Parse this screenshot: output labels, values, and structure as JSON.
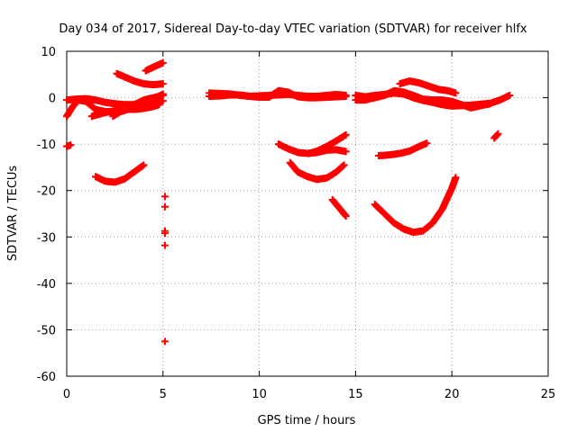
{
  "chart_data": {
    "type": "scatter",
    "title": "Day 034 of 2017, Sidereal Day-to-day VTEC variation (SDTVAR) for receiver hlfx",
    "xlabel": "GPS time / hours",
    "ylabel": "SDTVAR / TECUs",
    "xlim": [
      0,
      25
    ],
    "ylim": [
      -60,
      10
    ],
    "xticks": [
      0,
      5,
      10,
      15,
      20,
      25
    ],
    "yticks": [
      -60,
      -50,
      -40,
      -30,
      -20,
      -10,
      0,
      10
    ],
    "grid": true,
    "marker": "plus",
    "color": "#ff0000",
    "series": [
      {
        "x": [
          0.0,
          0.5,
          1.0,
          1.5,
          2.0,
          2.5,
          3.0,
          3.5,
          4.0,
          4.5,
          5.0
        ],
        "y": [
          -0.5,
          -0.3,
          -0.2,
          -0.5,
          -1.0,
          -1.3,
          -1.5,
          -1.5,
          -1.3,
          -1.0,
          -0.7
        ]
      },
      {
        "x": [
          0.0,
          0.3,
          0.6,
          1.0,
          1.5,
          2.0,
          2.5,
          3.0,
          3.5,
          4.0,
          4.5,
          5.0
        ],
        "y": [
          -4,
          -2,
          -0.5,
          -0.8,
          -2.5,
          -3.0,
          -3.0,
          -2.5,
          -1.5,
          -0.5,
          0.0,
          0.5
        ]
      },
      {
        "x": [
          1.3,
          2.0,
          2.5,
          3.0,
          3.5,
          4.0,
          4.5,
          5.0
        ],
        "y": [
          -4,
          -3.2,
          -2.8,
          -2.5,
          -2.0,
          -1.2,
          -0.3,
          0.8
        ]
      },
      {
        "x": [
          2.4,
          2.8,
          3.2,
          3.6,
          4.0,
          4.4,
          4.8
        ],
        "y": [
          -4,
          -3,
          -2.5,
          -2.5,
          -2.3,
          -2.0,
          -1.5
        ]
      },
      {
        "x": [
          2.6,
          3.0,
          3.5,
          4.0,
          4.5,
          5.0
        ],
        "y": [
          5.2,
          4.5,
          3.6,
          3.0,
          2.8,
          3.0
        ]
      },
      {
        "x": [
          4.1,
          4.4,
          4.7,
          5.0
        ],
        "y": [
          5.8,
          6.4,
          7.0,
          7.5
        ]
      },
      {
        "x": [
          0.0,
          0.2
        ],
        "y": [
          -10.5,
          -10.2
        ]
      },
      {
        "x": [
          1.5,
          2.0,
          2.5,
          3.0,
          3.5,
          4.0
        ],
        "y": [
          -17,
          -18.0,
          -18.2,
          -17.5,
          -16.0,
          -14.5
        ]
      },
      {
        "x": [
          5.1,
          5.1,
          5.1,
          5.1,
          5.1,
          5.1
        ],
        "y": [
          -21.3,
          -23.5,
          -28.7,
          -29.2,
          -31.8,
          -52.5
        ]
      },
      {
        "x": [
          7.4,
          8.0,
          8.5,
          9.0,
          9.5,
          10.0,
          10.5,
          11.0,
          11.5,
          12.0,
          12.5,
          13.0,
          13.5,
          14.0,
          14.5
        ],
        "y": [
          1.0,
          0.9,
          0.8,
          0.5,
          0.3,
          0.4,
          0.5,
          0.6,
          0.7,
          0.5,
          0.3,
          0.3,
          0.5,
          0.7,
          0.5
        ]
      },
      {
        "x": [
          7.4,
          8.0,
          8.5,
          9.0,
          9.5,
          10.0,
          10.5,
          11.0,
          11.5,
          12.0,
          12.5,
          13.0,
          13.5,
          14.0,
          14.5
        ],
        "y": [
          0.3,
          0.4,
          0.6,
          0.6,
          0.3,
          0.1,
          0.1,
          1.5,
          1.2,
          0.2,
          0.0,
          0.0,
          0.1,
          0.2,
          0.3
        ]
      },
      {
        "x": [
          11.0,
          11.5,
          12.0,
          12.5,
          13.0,
          13.5,
          14.0,
          14.5
        ],
        "y": [
          -10,
          -11.0,
          -11.8,
          -12.0,
          -11.8,
          -11.3,
          -11.2,
          -11.6
        ]
      },
      {
        "x": [
          12.6,
          13.0,
          13.5,
          14.0,
          14.5
        ],
        "y": [
          -12,
          -11.5,
          -10.5,
          -9.3,
          -8.0
        ]
      },
      {
        "x": [
          11.6,
          12.0,
          12.5,
          13.0,
          13.5,
          14.0,
          14.4
        ],
        "y": [
          -14,
          -16.0,
          -17.0,
          -17.6,
          -17.3,
          -16.0,
          -14.5
        ]
      },
      {
        "x": [
          13.8,
          14.2,
          14.5
        ],
        "y": [
          -22,
          -24.0,
          -25.5
        ]
      },
      {
        "x": [
          15.0,
          15.5,
          16.0,
          16.5,
          17.0,
          17.5,
          18.0,
          18.5,
          19.0,
          19.5,
          20.0,
          20.5,
          21.0,
          21.5,
          22.0,
          22.5,
          23.0
        ],
        "y": [
          0.5,
          0.2,
          0.5,
          0.7,
          1.0,
          0.8,
          0.0,
          -0.6,
          -1.0,
          -1.5,
          -1.8,
          -1.7,
          -1.6,
          -1.4,
          -1.2,
          -0.5,
          0.5
        ]
      },
      {
        "x": [
          15.0,
          15.5,
          16.0,
          16.5,
          17.0,
          17.5,
          18.0,
          18.5,
          19.0,
          19.5,
          20.0,
          20.5,
          21.0,
          21.5,
          22.0
        ],
        "y": [
          -0.5,
          -0.5,
          0.0,
          0.5,
          1.5,
          1.2,
          0.5,
          -0.3,
          -0.5,
          -0.5,
          -0.8,
          -1.5,
          -2.2,
          -1.7,
          -1.3
        ]
      },
      {
        "x": [
          17.3,
          17.8,
          18.3,
          18.8,
          19.3,
          19.8,
          20.2
        ],
        "y": [
          3.0,
          3.6,
          3.2,
          2.5,
          1.8,
          1.5,
          1.0
        ]
      },
      {
        "x": [
          16.2,
          16.8,
          17.3,
          17.8,
          18.3,
          18.7
        ],
        "y": [
          -12.5,
          -12.3,
          -12.0,
          -11.5,
          -10.5,
          -9.8
        ]
      },
      {
        "x": [
          16.0,
          16.5,
          17.0,
          17.5,
          18.0,
          18.5,
          19.0,
          19.5,
          20.0,
          20.2
        ],
        "y": [
          -23,
          -25.0,
          -27.0,
          -28.3,
          -29.0,
          -28.7,
          -27.0,
          -24.0,
          -19.5,
          -17.2
        ]
      },
      {
        "x": [
          22.2,
          22.4
        ],
        "y": [
          -8.7,
          -7.8
        ]
      }
    ]
  }
}
